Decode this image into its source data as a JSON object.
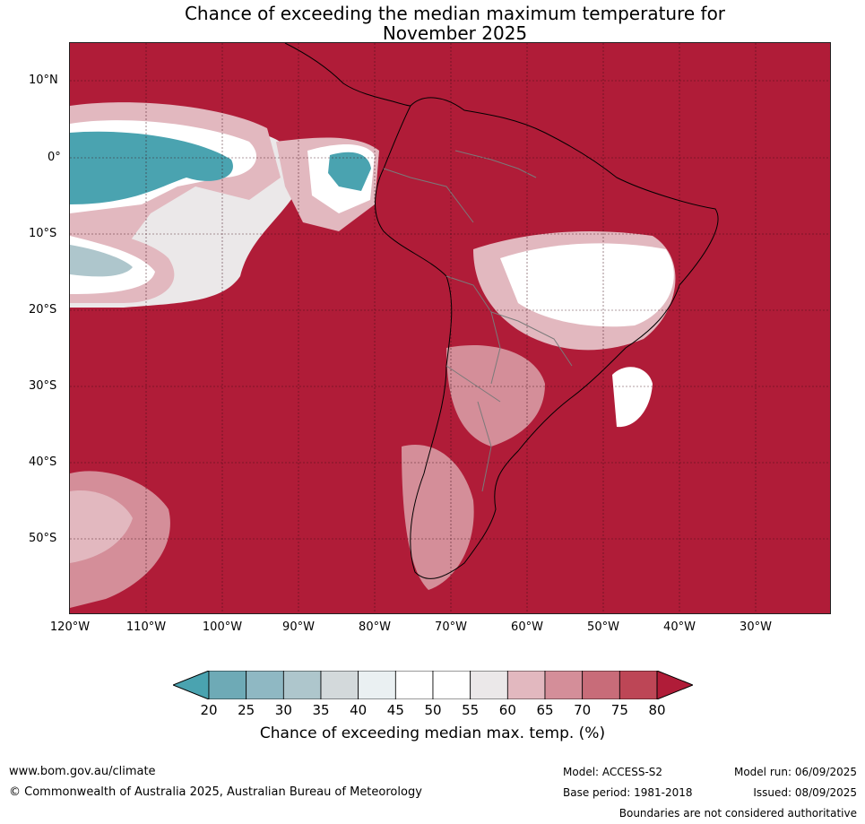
{
  "title_line1": "Chance of exceeding the median maximum temperature for",
  "title_line2": "November 2025",
  "lat_labels": [
    "10°N",
    "0°",
    "10°S",
    "20°S",
    "30°S",
    "40°S",
    "50°S"
  ],
  "lon_labels": [
    "120°W",
    "110°W",
    "100°W",
    "90°W",
    "80°W",
    "70°W",
    "60°W",
    "50°W",
    "40°W",
    "30°W"
  ],
  "colorbar": {
    "ticks": [
      "20",
      "25",
      "30",
      "35",
      "40",
      "45",
      "50",
      "55",
      "60",
      "65",
      "70",
      "75",
      "80"
    ],
    "colors": [
      "#4aa3b0",
      "#6eaab6",
      "#8fb8c3",
      "#aec6cc",
      "#d3d9db",
      "#eaf0f2",
      "#ffffff",
      "#ffffff",
      "#ebe8e9",
      "#e2b8bf",
      "#d48e99",
      "#c86c79",
      "#bd4656",
      "#b01c38"
    ],
    "label": "Chance of exceeding median max. temp. (%)"
  },
  "footer": {
    "website": "www.bom.gov.au/climate",
    "copyright": "© Commonwealth of Australia 2025, Australian Bureau of Meteorology",
    "model": "Model: ACCESS-S2",
    "base_period": "Base period: 1981-2018",
    "model_run": "Model run: 06/09/2025",
    "issued": "Issued: 08/09/2025",
    "disclaimer": "Boundaries are not considered authoritative"
  }
}
